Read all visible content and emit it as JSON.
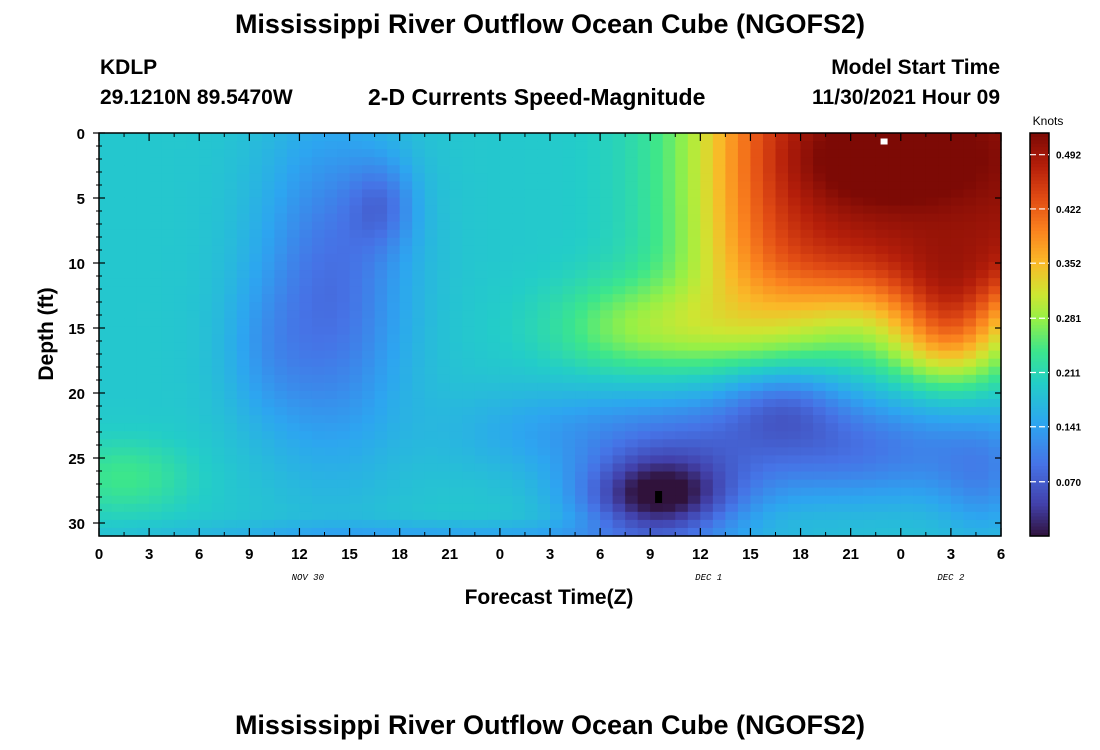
{
  "header": {
    "title": "Mississippi River Outflow Ocean Cube (NGOFS2)",
    "station_id": "KDLP",
    "station_coords": "29.1210N  89.5470W",
    "plot_title": "2-D Currents Speed-Magnitude",
    "model_start_label": "Model Start Time",
    "model_start_value": "11/30/2021 Hour 09"
  },
  "next_panel_title": "Mississippi River Outflow Ocean Cube (NGOFS2)",
  "chart_data": {
    "type": "heatmap",
    "title": "2-D Currents Speed-Magnitude",
    "xlabel": "Forecast Time(Z)",
    "ylabel": "Depth (ft)",
    "x_range_hours": [
      0,
      54
    ],
    "y_range_ft": [
      0,
      31
    ],
    "y_inverted": true,
    "x_ticks": [
      "0",
      "3",
      "6",
      "9",
      "12",
      "15",
      "18",
      "21",
      "0",
      "3",
      "6",
      "9",
      "12",
      "15",
      "18",
      "21",
      "0",
      "3",
      "6"
    ],
    "y_ticks": [
      0,
      5,
      10,
      15,
      20,
      25,
      30
    ],
    "date_labels": [
      {
        "text": "NOV 30",
        "hour": 12.5
      },
      {
        "text": "DEC 1",
        "hour": 36.5
      },
      {
        "text": "DEC 2",
        "hour": 51
      }
    ],
    "colorbar": {
      "title": "Knots",
      "min": 0,
      "max": 0.52,
      "ticks": [
        "0.492",
        "0.422",
        "0.352",
        "0.281",
        "0.211",
        "0.141",
        "0.070"
      ],
      "tick_values": [
        0.492,
        0.422,
        0.352,
        0.281,
        0.211,
        0.141,
        0.07
      ]
    },
    "features": [
      {
        "desc": "upper-right maximum",
        "hour": 47,
        "depth": 0.5,
        "value": 0.5
      },
      {
        "desc": "deep minimum",
        "hour": 33.5,
        "depth": 28,
        "value": 0.0
      }
    ],
    "grid": false,
    "colormap": "turbo"
  }
}
